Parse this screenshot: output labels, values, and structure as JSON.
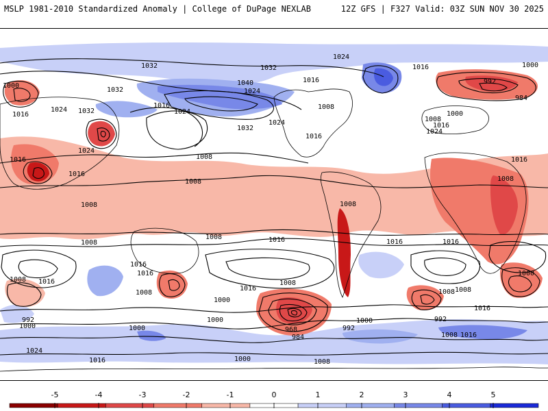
{
  "header": {
    "title": "MSLP 1981-2010 Standardized Anomaly | College of DuPage NEXLAB",
    "run_info": "12Z GFS | F327 Valid: 03Z SUN NOV 30 2025"
  },
  "colorbar": {
    "ticks": [
      "-5",
      "-4",
      "-3",
      "-2",
      "-1",
      "0",
      "1",
      "2",
      "3",
      "4",
      "5"
    ],
    "colors": [
      "#8b0000",
      "#c81818",
      "#e04848",
      "#f07a6a",
      "#f8b8a8",
      "#ffffff",
      "#c8d0f8",
      "#a0b0f0",
      "#7888e8",
      "#4a5ce0",
      "#1a2ad8"
    ]
  },
  "pressure_labels": [
    {
      "id": "l1",
      "text": "1000"
    },
    {
      "id": "l2",
      "text": "1016"
    },
    {
      "id": "l3",
      "text": "1024"
    },
    {
      "id": "l4",
      "text": "1032"
    },
    {
      "id": "l5",
      "text": "1032"
    },
    {
      "id": "l6",
      "text": "1032"
    },
    {
      "id": "l7",
      "text": "1032"
    },
    {
      "id": "l8",
      "text": "1040"
    },
    {
      "id": "l9",
      "text": "1024"
    },
    {
      "id": "l10",
      "text": "1016"
    },
    {
      "id": "l11",
      "text": "1024"
    },
    {
      "id": "l12",
      "text": "1016"
    },
    {
      "id": "l13",
      "text": "1008"
    },
    {
      "id": "l14",
      "text": "1024"
    },
    {
      "id": "l15",
      "text": "1032"
    },
    {
      "id": "l16",
      "text": "1024"
    },
    {
      "id": "l17",
      "text": "1016"
    },
    {
      "id": "l18",
      "text": "1008"
    },
    {
      "id": "l19",
      "text": "1016"
    },
    {
      "id": "l20",
      "text": "1008"
    },
    {
      "id": "l21",
      "text": "1008"
    },
    {
      "id": "l22",
      "text": "1024"
    },
    {
      "id": "l23",
      "text": "1016"
    },
    {
      "id": "l24",
      "text": "1008"
    },
    {
      "id": "l25",
      "text": "1016"
    },
    {
      "id": "l26",
      "text": "1000"
    },
    {
      "id": "l27",
      "text": "992"
    },
    {
      "id": "l28",
      "text": "984"
    },
    {
      "id": "l29",
      "text": "1008"
    },
    {
      "id": "l30",
      "text": "1000"
    },
    {
      "id": "l31",
      "text": "1016"
    },
    {
      "id": "l32",
      "text": "1024"
    },
    {
      "id": "l33",
      "text": "1016"
    },
    {
      "id": "l34",
      "text": "1008"
    },
    {
      "id": "l35",
      "text": "1016"
    },
    {
      "id": "l36",
      "text": "1008"
    },
    {
      "id": "l37",
      "text": "1016"
    },
    {
      "id": "l38",
      "text": "1016"
    },
    {
      "id": "l39",
      "text": "1008"
    },
    {
      "id": "l40",
      "text": "1016"
    },
    {
      "id": "l41",
      "text": "1008"
    },
    {
      "id": "l42",
      "text": "1016"
    },
    {
      "id": "l43",
      "text": "1016"
    },
    {
      "id": "l44",
      "text": "992"
    },
    {
      "id": "l45",
      "text": "1000"
    },
    {
      "id": "l46",
      "text": "1000"
    },
    {
      "id": "l47",
      "text": "1000"
    },
    {
      "id": "l48",
      "text": "1000"
    },
    {
      "id": "l49",
      "text": "1008"
    },
    {
      "id": "l50",
      "text": "968"
    },
    {
      "id": "l51",
      "text": "984"
    },
    {
      "id": "l52",
      "text": "992"
    },
    {
      "id": "l53",
      "text": "1000"
    },
    {
      "id": "l54",
      "text": "1016"
    },
    {
      "id": "l55",
      "text": "1008"
    },
    {
      "id": "l56",
      "text": "992"
    },
    {
      "id": "l57",
      "text": "1008"
    },
    {
      "id": "l58",
      "text": "1000"
    },
    {
      "id": "l59",
      "text": "1008"
    },
    {
      "id": "l60",
      "text": "1016"
    },
    {
      "id": "l61",
      "text": "1024"
    },
    {
      "id": "l62",
      "text": "1016"
    },
    {
      "id": "l63",
      "text": "1000"
    },
    {
      "id": "l64",
      "text": "1008"
    },
    {
      "id": "l65",
      "text": "1008"
    },
    {
      "id": "l66",
      "text": "1016"
    }
  ]
}
